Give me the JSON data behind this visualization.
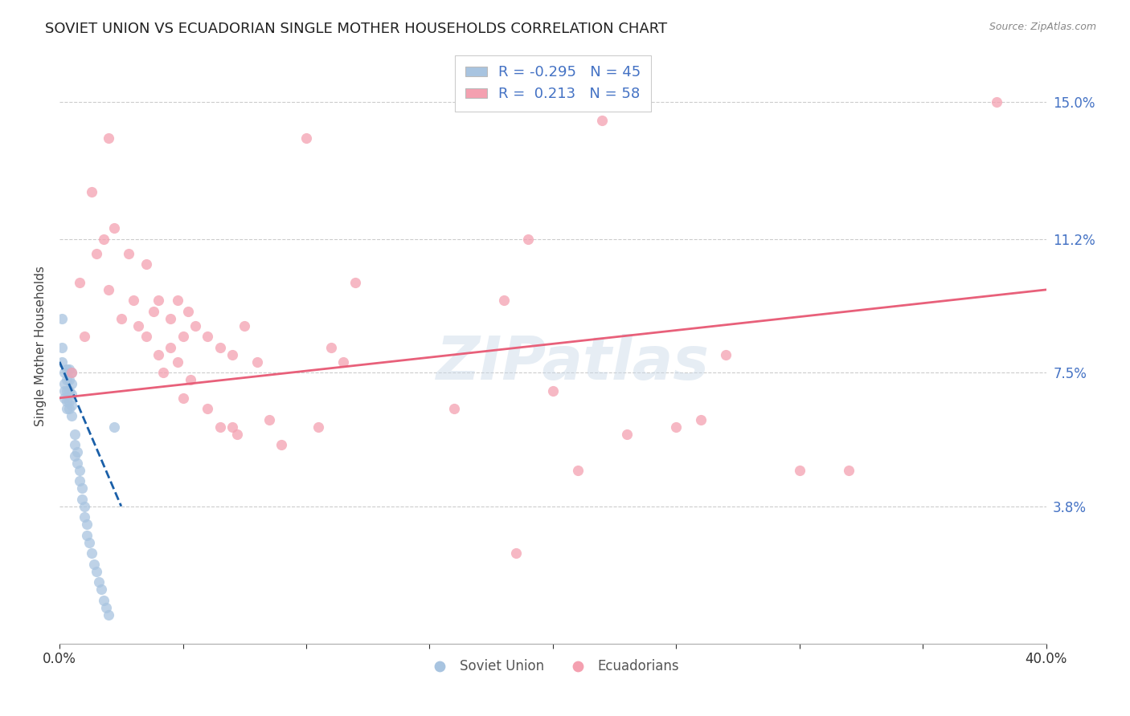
{
  "title": "SOVIET UNION VS ECUADORIAN SINGLE MOTHER HOUSEHOLDS CORRELATION CHART",
  "source": "Source: ZipAtlas.com",
  "ylabel": "Single Mother Households",
  "xlim": [
    0.0,
    0.4
  ],
  "ylim": [
    0.0,
    0.165
  ],
  "yticks": [
    0.038,
    0.075,
    0.112,
    0.15
  ],
  "ytick_labels": [
    "3.8%",
    "7.5%",
    "11.2%",
    "15.0%"
  ],
  "xticks": [
    0.0,
    0.05,
    0.1,
    0.15,
    0.2,
    0.25,
    0.3,
    0.35,
    0.4
  ],
  "xtick_labels": [
    "0.0%",
    "",
    "",
    "",
    "",
    "",
    "",
    "",
    "40.0%"
  ],
  "legend_r_soviet": "-0.295",
  "legend_n_soviet": "45",
  "legend_r_ecuadorian": " 0.213",
  "legend_n_ecuadorian": "58",
  "soviet_color": "#a8c4e0",
  "ecuadorian_color": "#f4a0b0",
  "soviet_line_color": "#1a5fa8",
  "ecuadorian_line_color": "#e8607a",
  "watermark": "ZIPatlas",
  "background_color": "#ffffff",
  "grid_color": "#cccccc",
  "title_fontsize": 13,
  "axis_label_fontsize": 11,
  "soviet_points": [
    [
      0.001,
      0.09
    ],
    [
      0.001,
      0.082
    ],
    [
      0.001,
      0.078
    ],
    [
      0.002,
      0.075
    ],
    [
      0.002,
      0.072
    ],
    [
      0.002,
      0.07
    ],
    [
      0.002,
      0.068
    ],
    [
      0.003,
      0.076
    ],
    [
      0.003,
      0.073
    ],
    [
      0.003,
      0.07
    ],
    [
      0.003,
      0.067
    ],
    [
      0.003,
      0.065
    ],
    [
      0.004,
      0.076
    ],
    [
      0.004,
      0.073
    ],
    [
      0.004,
      0.07
    ],
    [
      0.004,
      0.067
    ],
    [
      0.004,
      0.065
    ],
    [
      0.005,
      0.075
    ],
    [
      0.005,
      0.072
    ],
    [
      0.005,
      0.069
    ],
    [
      0.005,
      0.066
    ],
    [
      0.005,
      0.063
    ],
    [
      0.006,
      0.058
    ],
    [
      0.006,
      0.055
    ],
    [
      0.006,
      0.052
    ],
    [
      0.007,
      0.053
    ],
    [
      0.007,
      0.05
    ],
    [
      0.008,
      0.048
    ],
    [
      0.008,
      0.045
    ],
    [
      0.009,
      0.043
    ],
    [
      0.009,
      0.04
    ],
    [
      0.01,
      0.038
    ],
    [
      0.01,
      0.035
    ],
    [
      0.011,
      0.033
    ],
    [
      0.011,
      0.03
    ],
    [
      0.012,
      0.028
    ],
    [
      0.013,
      0.025
    ],
    [
      0.014,
      0.022
    ],
    [
      0.015,
      0.02
    ],
    [
      0.016,
      0.017
    ],
    [
      0.017,
      0.015
    ],
    [
      0.018,
      0.012
    ],
    [
      0.019,
      0.01
    ],
    [
      0.02,
      0.008
    ],
    [
      0.022,
      0.06
    ]
  ],
  "ecuadorian_points": [
    [
      0.005,
      0.075
    ],
    [
      0.008,
      0.1
    ],
    [
      0.01,
      0.085
    ],
    [
      0.013,
      0.125
    ],
    [
      0.015,
      0.108
    ],
    [
      0.018,
      0.112
    ],
    [
      0.02,
      0.098
    ],
    [
      0.022,
      0.115
    ],
    [
      0.025,
      0.09
    ],
    [
      0.028,
      0.108
    ],
    [
      0.03,
      0.095
    ],
    [
      0.032,
      0.088
    ],
    [
      0.035,
      0.105
    ],
    [
      0.035,
      0.085
    ],
    [
      0.038,
      0.092
    ],
    [
      0.04,
      0.08
    ],
    [
      0.04,
      0.095
    ],
    [
      0.042,
      0.075
    ],
    [
      0.045,
      0.09
    ],
    [
      0.045,
      0.082
    ],
    [
      0.048,
      0.095
    ],
    [
      0.048,
      0.078
    ],
    [
      0.05,
      0.085
    ],
    [
      0.05,
      0.068
    ],
    [
      0.052,
      0.092
    ],
    [
      0.053,
      0.073
    ],
    [
      0.055,
      0.088
    ],
    [
      0.06,
      0.085
    ],
    [
      0.06,
      0.065
    ],
    [
      0.065,
      0.082
    ],
    [
      0.065,
      0.06
    ],
    [
      0.07,
      0.08
    ],
    [
      0.07,
      0.06
    ],
    [
      0.072,
      0.058
    ],
    [
      0.075,
      0.088
    ],
    [
      0.08,
      0.078
    ],
    [
      0.085,
      0.062
    ],
    [
      0.09,
      0.055
    ],
    [
      0.1,
      0.14
    ],
    [
      0.105,
      0.06
    ],
    [
      0.11,
      0.082
    ],
    [
      0.115,
      0.078
    ],
    [
      0.12,
      0.1
    ],
    [
      0.16,
      0.065
    ],
    [
      0.18,
      0.095
    ],
    [
      0.19,
      0.112
    ],
    [
      0.2,
      0.07
    ],
    [
      0.21,
      0.048
    ],
    [
      0.22,
      0.145
    ],
    [
      0.23,
      0.058
    ],
    [
      0.25,
      0.06
    ],
    [
      0.26,
      0.062
    ],
    [
      0.27,
      0.08
    ],
    [
      0.3,
      0.048
    ],
    [
      0.32,
      0.048
    ],
    [
      0.38,
      0.15
    ],
    [
      0.185,
      0.025
    ],
    [
      0.02,
      0.14
    ]
  ],
  "soviet_trend_x": [
    0.0,
    0.025
  ],
  "soviet_trend_y": [
    0.078,
    0.038
  ],
  "ecuadorian_trend_x": [
    0.0,
    0.4
  ],
  "ecuadorian_trend_y": [
    0.068,
    0.098
  ]
}
